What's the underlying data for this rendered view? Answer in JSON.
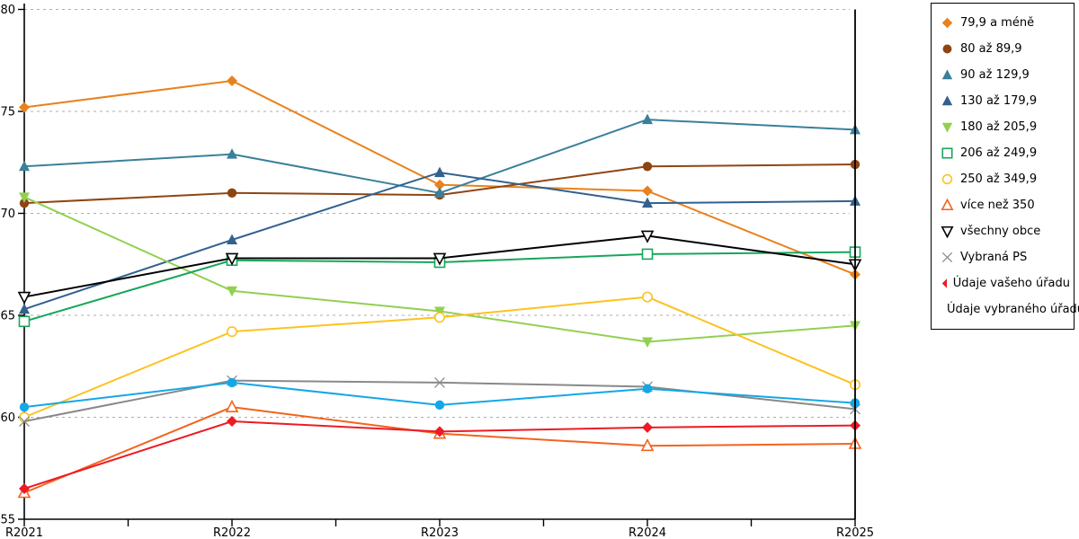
{
  "chart_data": {
    "type": "line",
    "title": "",
    "xlabel": "",
    "ylabel": "",
    "x_labels": [
      "R2021",
      "R2022",
      "R2023",
      "R2024",
      "R2025"
    ],
    "y_ticks": [
      55,
      60,
      65,
      70,
      75,
      80
    ],
    "ylim": [
      55,
      80
    ],
    "grid": "horizontal-dashed-gray",
    "legend_position": "right-outside-box",
    "series": [
      {
        "name": "79,9 a méně",
        "marker": "diamond",
        "fill": "solid",
        "color": "#E8821E",
        "values": [
          75.2,
          76.5,
          71.4,
          71.1,
          67.0
        ]
      },
      {
        "name": "80 až 89,9",
        "marker": "circle",
        "fill": "solid",
        "color": "#8F4512",
        "values": [
          70.5,
          71.0,
          70.9,
          72.3,
          72.4
        ]
      },
      {
        "name": "90 až 129,9",
        "marker": "triangle-up",
        "fill": "solid",
        "color": "#3A809B",
        "values": [
          72.3,
          72.9,
          71.0,
          74.6,
          74.1
        ]
      },
      {
        "name": "130 až 179,9",
        "marker": "triangle-up",
        "fill": "solid",
        "color": "#32618E",
        "values": [
          65.3,
          68.7,
          72.0,
          70.5,
          70.6
        ]
      },
      {
        "name": "180 až 205,9",
        "marker": "triangle-down",
        "fill": "solid",
        "color": "#92D050",
        "values": [
          70.8,
          66.2,
          65.2,
          63.7,
          64.5
        ]
      },
      {
        "name": "206 až 249,9",
        "marker": "square",
        "fill": "open",
        "color": "#17A65B",
        "values": [
          64.7,
          67.7,
          67.6,
          68.0,
          68.1
        ]
      },
      {
        "name": "250 až 349,9",
        "marker": "circle",
        "fill": "open",
        "color": "#FDC220",
        "values": [
          60.0,
          64.2,
          64.9,
          65.9,
          61.6
        ]
      },
      {
        "name": "více než 350",
        "marker": "triangle-up",
        "fill": "open",
        "color": "#F4631E",
        "values": [
          56.3,
          60.5,
          59.2,
          58.6,
          58.7
        ]
      },
      {
        "name": "všechny obce",
        "marker": "triangle-down",
        "fill": "open",
        "color": "#000000",
        "values": [
          65.9,
          67.8,
          67.8,
          68.9,
          67.5
        ]
      },
      {
        "name": "Vybraná PS",
        "marker": "x",
        "fill": "line",
        "color": "#898989",
        "values": [
          59.8,
          61.8,
          61.7,
          61.5,
          60.4
        ]
      },
      {
        "name": "Údaje vašeho úřadu",
        "marker": "diamond",
        "fill": "solid",
        "color": "#EC1B24",
        "values": [
          56.5,
          59.8,
          59.3,
          59.5,
          59.6
        ]
      },
      {
        "name": "Údaje vybraného úřadu",
        "marker": "circle",
        "fill": "solid",
        "color": "#14A7E6",
        "values": [
          60.5,
          61.7,
          60.6,
          61.4,
          60.7
        ]
      }
    ],
    "colors": {
      "gridline": "#ADADAD",
      "axis": "#000000",
      "background": "#FFFFFF"
    }
  }
}
